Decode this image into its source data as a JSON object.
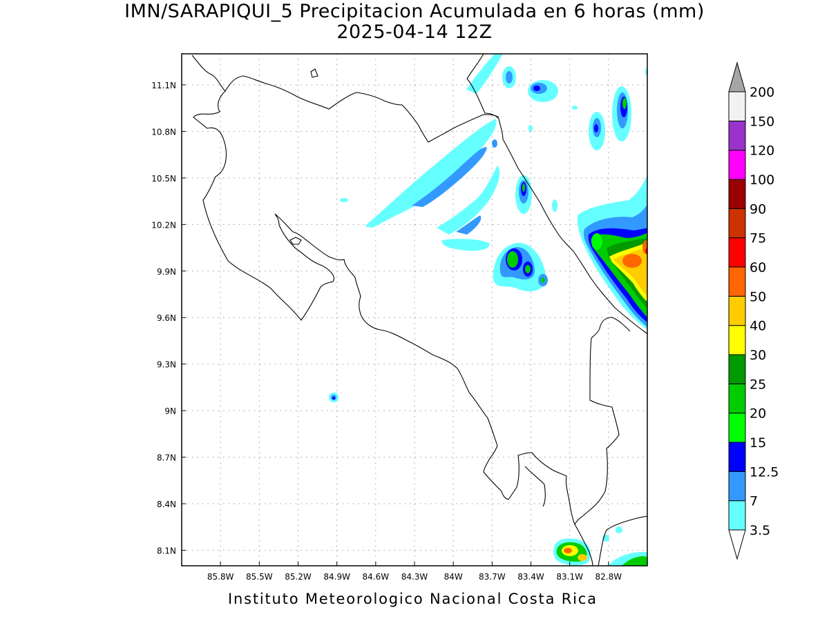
{
  "title": {
    "line1": "IMN/SARAPIQUI_5 Precipitacion Acumulada en 6 horas (mm)",
    "line2": "2025-04-14 12Z"
  },
  "footer": "Instituto Meteorologico Nacional Costa Rica",
  "map": {
    "lon_range": [
      -86.1,
      -82.5
    ],
    "lat_range": [
      8.0,
      11.3
    ],
    "lon_ticks": [
      {
        "value": -85.8,
        "label": "85.8W"
      },
      {
        "value": -85.5,
        "label": "85.5W"
      },
      {
        "value": -85.2,
        "label": "85.2W"
      },
      {
        "value": -84.9,
        "label": "84.9W"
      },
      {
        "value": -84.6,
        "label": "84.6W"
      },
      {
        "value": -84.3,
        "label": "84.3W"
      },
      {
        "value": -84.0,
        "label": "84W"
      },
      {
        "value": -83.7,
        "label": "83.7W"
      },
      {
        "value": -83.4,
        "label": "83.4W"
      },
      {
        "value": -83.1,
        "label": "83.1W"
      },
      {
        "value": -82.8,
        "label": "82.8W"
      }
    ],
    "lat_ticks": [
      {
        "value": 11.1,
        "label": "11.1N"
      },
      {
        "value": 10.8,
        "label": "10.8N"
      },
      {
        "value": 10.5,
        "label": "10.5N"
      },
      {
        "value": 10.2,
        "label": "10.2N"
      },
      {
        "value": 9.9,
        "label": "9.9N"
      },
      {
        "value": 9.6,
        "label": "9.6N"
      },
      {
        "value": 9.3,
        "label": "9.3N"
      },
      {
        "value": 9.0,
        "label": "9N"
      },
      {
        "value": 8.7,
        "label": "8.7N"
      },
      {
        "value": 8.4,
        "label": "8.4N"
      },
      {
        "value": 8.1,
        "label": "8.1N"
      }
    ],
    "grid": "dotted"
  },
  "colorbar": {
    "unit": "mm",
    "levels": [
      {
        "label": "3.5",
        "color": "#66ffff"
      },
      {
        "label": "7",
        "color": "#3399ff"
      },
      {
        "label": "12.5",
        "color": "#0000ff"
      },
      {
        "label": "15",
        "color": "#00ff00"
      },
      {
        "label": "20",
        "color": "#00cc00"
      },
      {
        "label": "25",
        "color": "#009900"
      },
      {
        "label": "30",
        "color": "#ffff00"
      },
      {
        "label": "40",
        "color": "#ffcc00"
      },
      {
        "label": "50",
        "color": "#ff6600"
      },
      {
        "label": "60",
        "color": "#ff0000"
      },
      {
        "label": "75",
        "color": "#cc3300"
      },
      {
        "label": "90",
        "color": "#990000"
      },
      {
        "label": "100",
        "color": "#ff00ff"
      },
      {
        "label": "120",
        "color": "#9933cc"
      },
      {
        "label": "150",
        "color": "#f2f2f2"
      },
      {
        "label": "200",
        "color": "#a6a6a6"
      }
    ]
  },
  "rain_areas": [
    {
      "name": "sw-band",
      "lon": -84.02,
      "lat": 10.53,
      "level": "3.5"
    },
    {
      "name": "sw-band-core",
      "lon": -83.98,
      "lat": 10.58,
      "level": "7"
    },
    {
      "name": "north-streak",
      "lon": -83.72,
      "lat": 11.15,
      "level": "3.5"
    },
    {
      "name": "north-cell-1",
      "lon": -83.47,
      "lat": 11.1,
      "level": "7"
    },
    {
      "name": "north-cell-2",
      "lon": -83.4,
      "lat": 11.08,
      "level": "12.5"
    },
    {
      "name": "ne-cell",
      "lon": -82.9,
      "lat": 10.95,
      "level": "20"
    },
    {
      "name": "ne-cell-2",
      "lon": -83.07,
      "lat": 10.83,
      "level": "12.5"
    },
    {
      "name": "mid-cell",
      "lon": -83.42,
      "lat": 10.44,
      "level": "20"
    },
    {
      "name": "mid-band",
      "lon": -83.8,
      "lat": 10.05,
      "level": "7"
    },
    {
      "name": "central-cell",
      "lon": -83.52,
      "lat": 9.9,
      "level": "20"
    },
    {
      "name": "central-cell-2",
      "lon": -83.42,
      "lat": 9.92,
      "level": "25"
    },
    {
      "name": "central-cell-3",
      "lon": -83.3,
      "lat": 9.84,
      "level": "15"
    },
    {
      "name": "east-heavy",
      "lon": -82.7,
      "lat": 9.95,
      "level": "50"
    },
    {
      "name": "isolated-cell",
      "lon": -84.88,
      "lat": 9.09,
      "level": "12.5"
    },
    {
      "name": "south-cell-1",
      "lon": -83.05,
      "lat": 8.1,
      "level": "50"
    },
    {
      "name": "south-cell-2",
      "lon": -82.7,
      "lat": 8.05,
      "level": "20"
    }
  ]
}
